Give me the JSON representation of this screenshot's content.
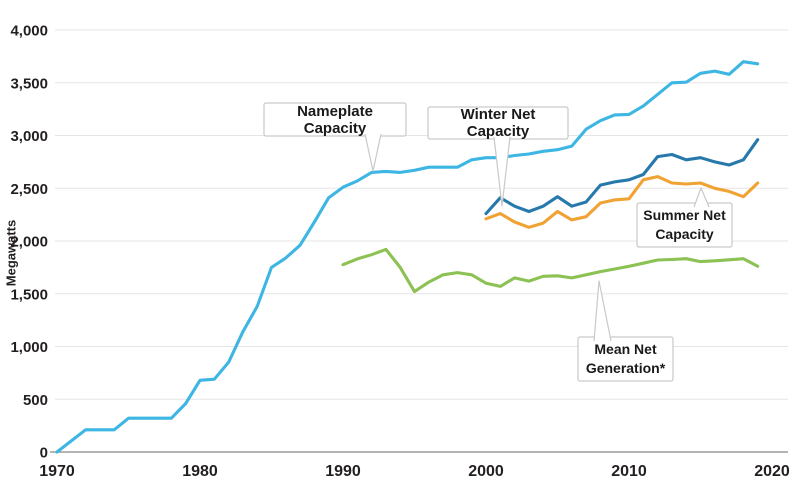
{
  "chart_data": {
    "type": "line",
    "title": "",
    "ylabel": "Megawatts",
    "xlabel": "",
    "ylim": [
      0,
      4000
    ],
    "xlim": [
      1970,
      2021
    ],
    "grid": "horizontal",
    "legend": "inline-callouts",
    "yticks": {
      "values": [
        0,
        500,
        1000,
        1500,
        2000,
        2500,
        3000,
        3500,
        4000
      ],
      "labels": [
        "0",
        "500",
        "1,000",
        "1,500",
        "2,000",
        "2,500",
        "3,000",
        "3,500",
        "4,000"
      ]
    },
    "xticks": {
      "values": [
        1970,
        1980,
        1990,
        2000,
        2010,
        2020
      ],
      "labels": [
        "1970",
        "1980",
        "1990",
        "2000",
        "2010",
        "2020"
      ]
    },
    "series": [
      {
        "name": "Nameplate Capacity",
        "color": "#3eb6e3",
        "start_year": 1970,
        "values": [
          0,
          105,
          210,
          210,
          210,
          320,
          320,
          320,
          320,
          460,
          680,
          690,
          850,
          1140,
          1380,
          1750,
          1840,
          1960,
          2180,
          2410,
          2510,
          2570,
          2650,
          2660,
          2650,
          2670,
          2700,
          2700,
          2700,
          2770,
          2790,
          2790,
          2810,
          2825,
          2850,
          2865,
          2900,
          3060,
          3140,
          3195,
          3200,
          3280,
          3390,
          3500,
          3505,
          3590,
          3610,
          3580,
          3700,
          3680
        ]
      },
      {
        "name": "Winter Net Capacity",
        "color": "#2779ab",
        "start_year": 2000,
        "values": [
          2260,
          2410,
          2330,
          2280,
          2330,
          2420,
          2330,
          2370,
          2530,
          2560,
          2580,
          2630,
          2800,
          2820,
          2770,
          2790,
          2750,
          2720,
          2770,
          2960
        ]
      },
      {
        "name": "Summer Net Capacity",
        "color": "#f0a232",
        "start_year": 2000,
        "values": [
          2210,
          2260,
          2180,
          2130,
          2170,
          2280,
          2200,
          2230,
          2360,
          2390,
          2400,
          2580,
          2610,
          2550,
          2540,
          2550,
          2500,
          2470,
          2420,
          2550
        ]
      },
      {
        "name": "Mean Net Generation*",
        "color": "#8cc153",
        "start_year": 1990,
        "values": [
          1775,
          1830,
          1870,
          1920,
          1750,
          1520,
          1610,
          1680,
          1700,
          1680,
          1600,
          1570,
          1650,
          1620,
          1665,
          1670,
          1650,
          1680,
          1710,
          1735,
          1760,
          1790,
          1820,
          1825,
          1832,
          1805,
          1812,
          1822,
          1832,
          1760
        ]
      }
    ],
    "annotations": [
      {
        "text": "Nameplate Capacity",
        "series": "Nameplate Capacity"
      },
      {
        "text": "Winter Net Capacity",
        "series": "Winter Net Capacity"
      },
      {
        "text": "Summer Net Capacity",
        "series": "Summer Net Capacity"
      },
      {
        "text": "Mean Net Generation*",
        "series": "Mean Net Generation*"
      }
    ]
  }
}
